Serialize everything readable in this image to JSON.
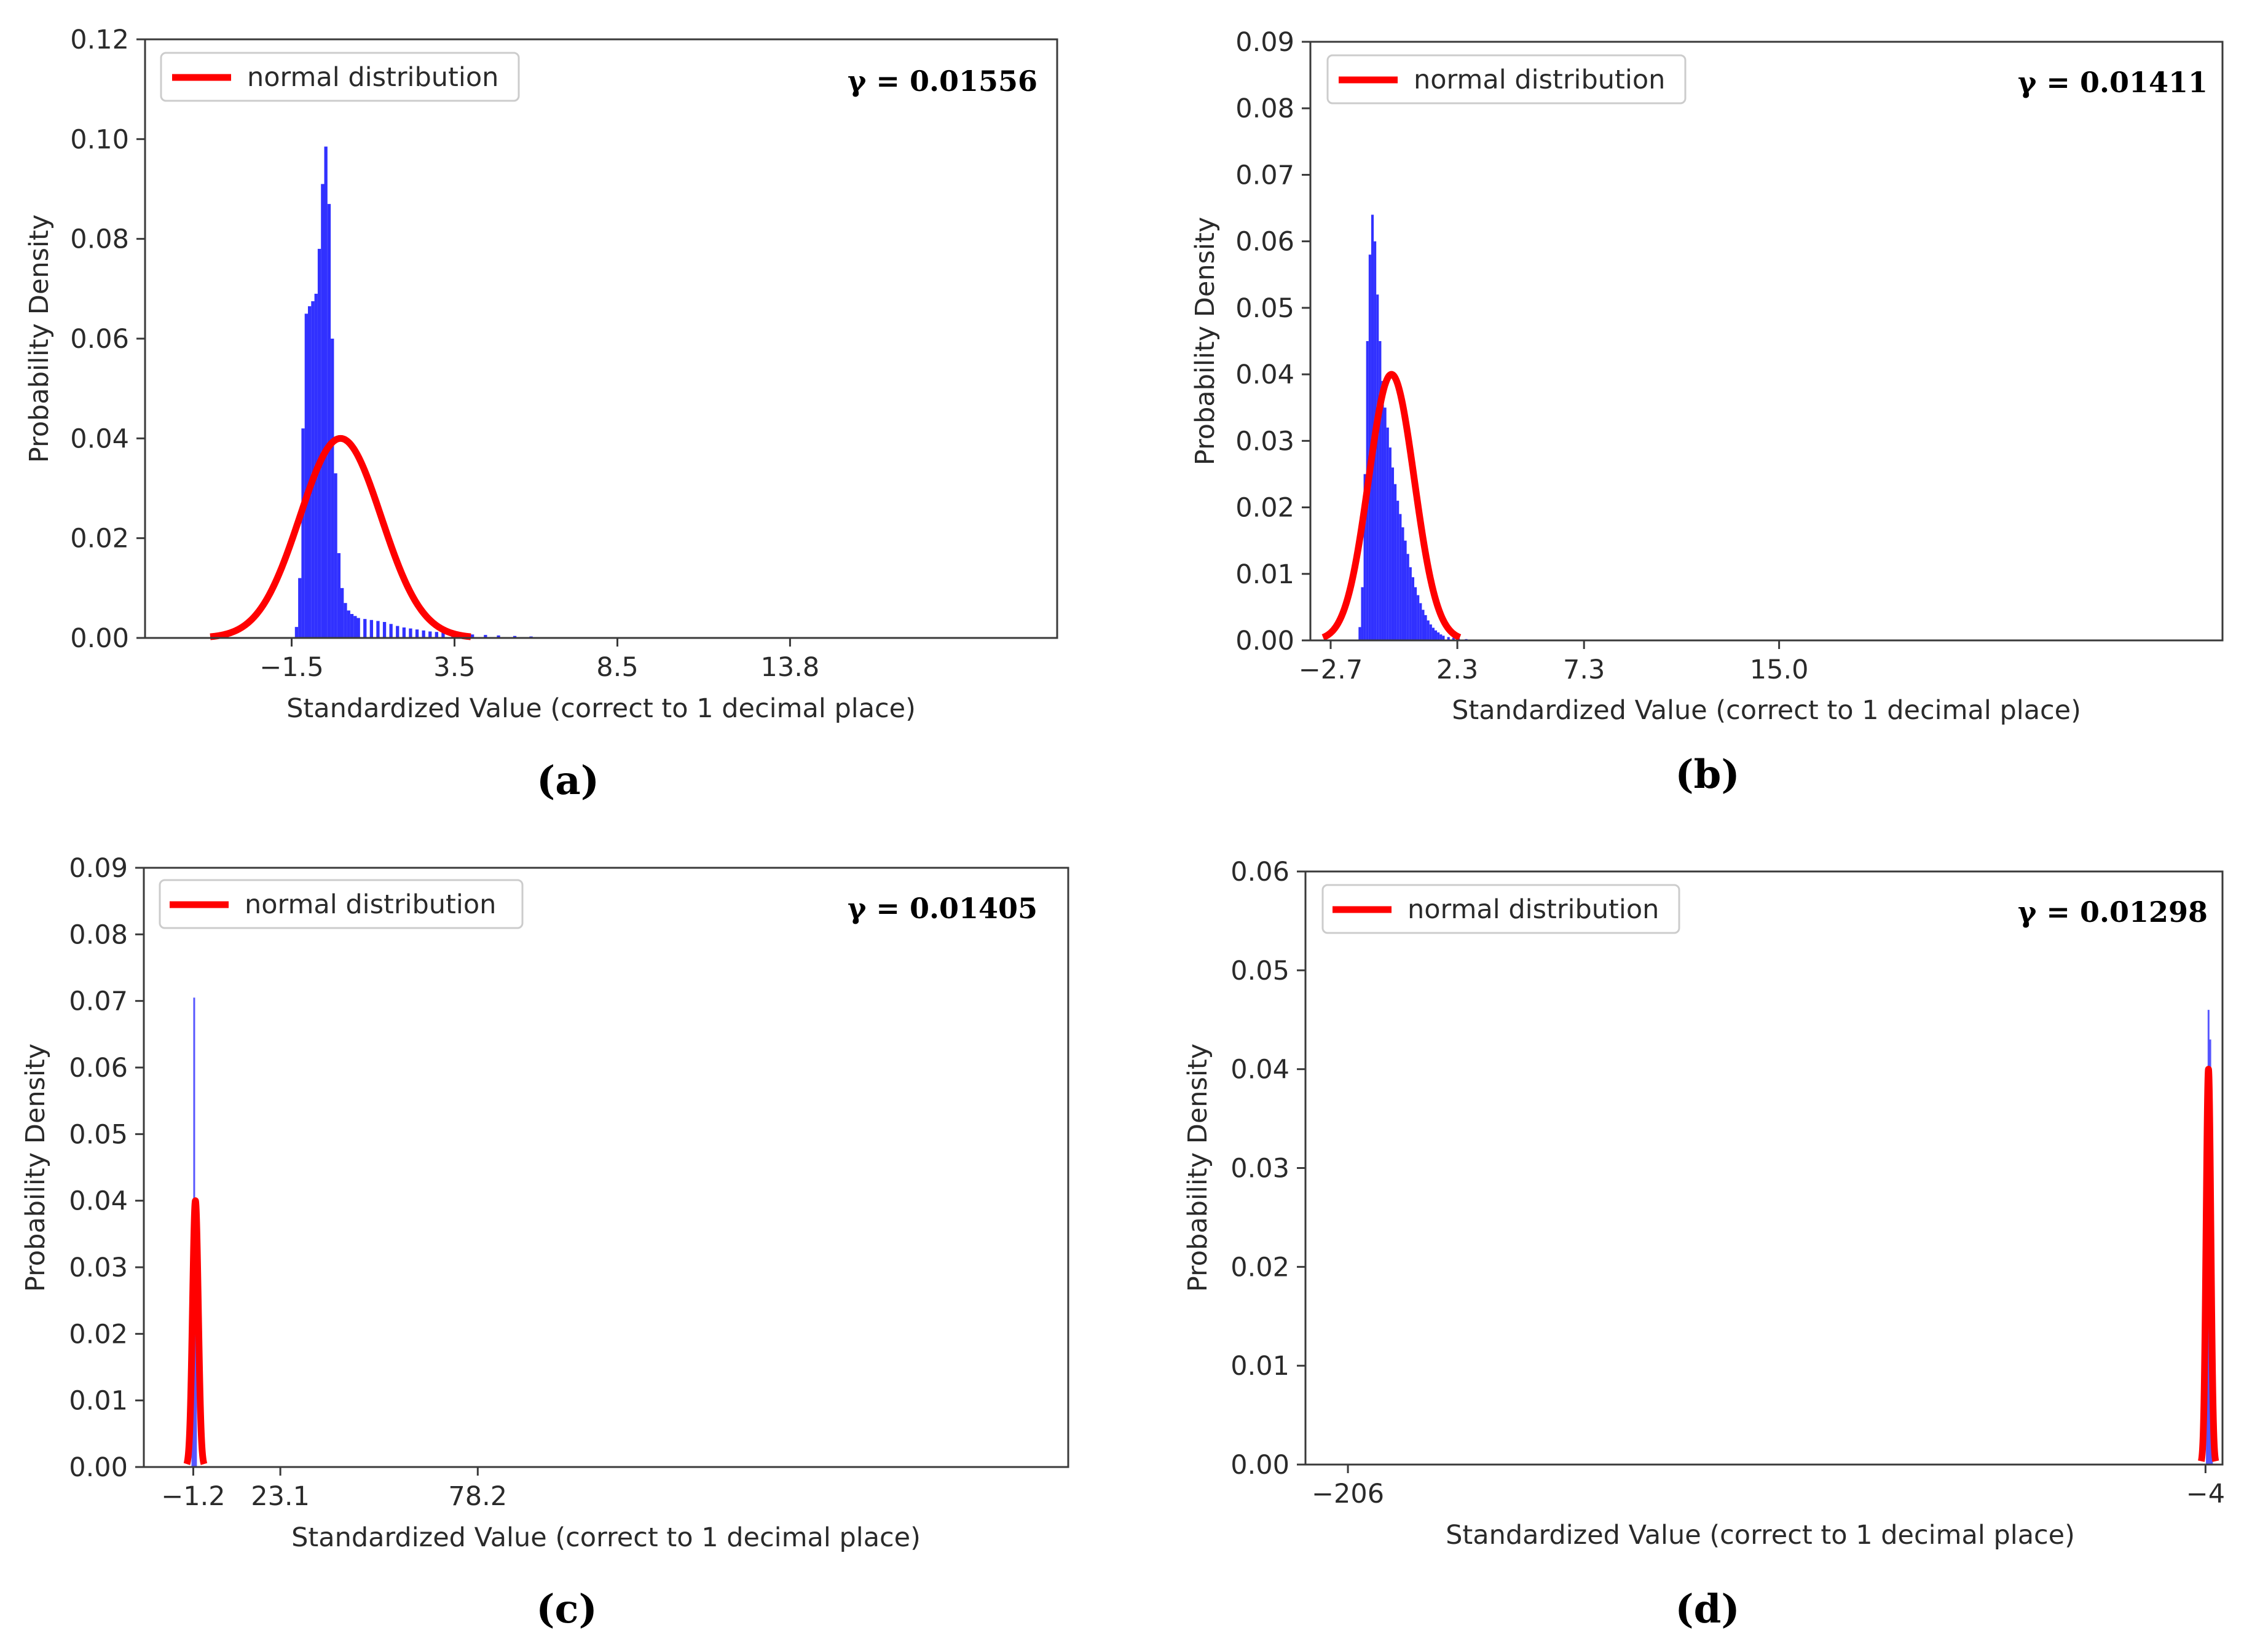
{
  "figure": {
    "panel_count": 4
  },
  "colors": {
    "histogram": "#1f1fff",
    "normal_curve": "#ff0000",
    "axes": "#3a3a3a",
    "legend_border": "#cccccc"
  },
  "chart_data": [
    {
      "type": "bar",
      "panel_label": "(a)",
      "gamma": "γ = 0.01556",
      "xlabel": "Standardized Value (correct to 1 decimal place)",
      "ylabel": "Probability Density",
      "xlim": [
        -6.0,
        22.0
      ],
      "ylim": [
        0,
        0.12
      ],
      "yticks": [
        0,
        0.02,
        0.04,
        0.06,
        0.08,
        0.1,
        0.12
      ],
      "ytick_labels": [
        "0.00",
        "0.02",
        "0.04",
        "0.06",
        "0.08",
        "0.10",
        "0.12"
      ],
      "xticks": [
        -1.5,
        3.5,
        8.5,
        13.8
      ],
      "xtick_labels": [
        "−1.5",
        "3.5",
        "8.5",
        "13.8"
      ],
      "legend": {
        "label": "normal distribution",
        "position": "top-left"
      },
      "histogram": {
        "bin_width": 0.1,
        "values": [
          [
            -1.4,
            0.0022
          ],
          [
            -1.3,
            0.012
          ],
          [
            -1.2,
            0.042
          ],
          [
            -1.1,
            0.065
          ],
          [
            -1.0,
            0.0665
          ],
          [
            -0.9,
            0.0675
          ],
          [
            -0.8,
            0.069
          ],
          [
            -0.7,
            0.078
          ],
          [
            -0.6,
            0.091
          ],
          [
            -0.5,
            0.0985
          ],
          [
            -0.4,
            0.087
          ],
          [
            -0.3,
            0.06
          ],
          [
            -0.2,
            0.033
          ],
          [
            -0.1,
            0.017
          ],
          [
            0.0,
            0.01
          ],
          [
            0.1,
            0.007
          ],
          [
            0.2,
            0.0055
          ],
          [
            0.3,
            0.0048
          ],
          [
            0.4,
            0.0044
          ],
          [
            0.5,
            0.004
          ],
          [
            0.7,
            0.0038
          ],
          [
            0.9,
            0.0036
          ],
          [
            1.1,
            0.0034
          ],
          [
            1.3,
            0.0032
          ],
          [
            1.5,
            0.0028
          ],
          [
            1.7,
            0.0024
          ],
          [
            1.9,
            0.0021
          ],
          [
            2.1,
            0.0019
          ],
          [
            2.3,
            0.0017
          ],
          [
            2.5,
            0.0015
          ],
          [
            2.7,
            0.0013
          ],
          [
            2.9,
            0.0012
          ],
          [
            3.1,
            0.0011
          ],
          [
            3.4,
            0.001
          ],
          [
            3.7,
            0.0008
          ],
          [
            4.0,
            0.0007
          ],
          [
            4.4,
            0.0006
          ],
          [
            4.8,
            0.0005
          ],
          [
            5.3,
            0.0004
          ],
          [
            5.8,
            0.0003
          ]
        ]
      },
      "normal_curve": {
        "mean": 0.0,
        "peak": 0.04,
        "sigma": 1.25,
        "x_range": [
          -4.0,
          4.0
        ]
      }
    },
    {
      "type": "bar",
      "panel_label": "(b)",
      "gamma": "γ = 0.01411",
      "xlabel": "Standardized Value (correct to 1 decimal place)",
      "ylabel": "Probability Density",
      "xlim": [
        -3.5,
        32.5
      ],
      "ylim": [
        0,
        0.09
      ],
      "yticks": [
        0,
        0.01,
        0.02,
        0.03,
        0.04,
        0.05,
        0.06,
        0.07,
        0.08,
        0.09
      ],
      "ytick_labels": [
        "0.00",
        "0.01",
        "0.02",
        "0.03",
        "0.04",
        "0.05",
        "0.06",
        "0.07",
        "0.08",
        "0.09"
      ],
      "xticks": [
        -2.7,
        2.3,
        7.3,
        15.0
      ],
      "xtick_labels": [
        "−2.7",
        "2.3",
        "7.3",
        "15.0"
      ],
      "legend": {
        "label": "normal distribution",
        "position": "top-left"
      },
      "histogram": {
        "bin_width": 0.1,
        "values": [
          [
            -1.6,
            0.002
          ],
          [
            -1.5,
            0.008
          ],
          [
            -1.4,
            0.025
          ],
          [
            -1.3,
            0.045
          ],
          [
            -1.2,
            0.058
          ],
          [
            -1.1,
            0.064
          ],
          [
            -1.0,
            0.06
          ],
          [
            -0.9,
            0.052
          ],
          [
            -0.8,
            0.045
          ],
          [
            -0.7,
            0.039
          ],
          [
            -0.6,
            0.035
          ],
          [
            -0.5,
            0.032
          ],
          [
            -0.4,
            0.029
          ],
          [
            -0.3,
            0.026
          ],
          [
            -0.2,
            0.0235
          ],
          [
            -0.1,
            0.021
          ],
          [
            0.0,
            0.019
          ],
          [
            0.1,
            0.017
          ],
          [
            0.2,
            0.015
          ],
          [
            0.3,
            0.013
          ],
          [
            0.4,
            0.011
          ],
          [
            0.5,
            0.0095
          ],
          [
            0.6,
            0.008
          ],
          [
            0.7,
            0.0068
          ],
          [
            0.8,
            0.0056
          ],
          [
            0.9,
            0.0046
          ],
          [
            1.0,
            0.0038
          ],
          [
            1.1,
            0.003
          ],
          [
            1.2,
            0.0024
          ],
          [
            1.3,
            0.0019
          ],
          [
            1.4,
            0.0015
          ],
          [
            1.5,
            0.0012
          ],
          [
            1.6,
            0.0009
          ],
          [
            1.7,
            0.0007
          ],
          [
            1.9,
            0.0005
          ],
          [
            2.1,
            0.0004
          ],
          [
            2.3,
            0.0003
          ],
          [
            2.6,
            0.0002
          ],
          [
            2.9,
            0.0001
          ]
        ]
      },
      "normal_curve": {
        "mean": -0.3,
        "peak": 0.04,
        "sigma": 0.9,
        "x_range": [
          -3.0,
          2.4
        ]
      }
    },
    {
      "type": "bar",
      "panel_label": "(c)",
      "gamma": "γ = 0.01405",
      "xlabel": "Standardized Value (correct to 1 decimal place)",
      "ylabel": "Probability Density",
      "xlim": [
        -15.0,
        243.0
      ],
      "ylim": [
        0,
        0.09
      ],
      "yticks": [
        0,
        0.01,
        0.02,
        0.03,
        0.04,
        0.05,
        0.06,
        0.07,
        0.08,
        0.09
      ],
      "ytick_labels": [
        "0.00",
        "0.01",
        "0.02",
        "0.03",
        "0.04",
        "0.05",
        "0.06",
        "0.07",
        "0.08",
        "0.09"
      ],
      "xticks": [
        -1.2,
        23.1,
        78.2
      ],
      "xtick_labels": [
        "−1.2",
        "23.1",
        "78.2"
      ],
      "legend": {
        "label": "normal distribution",
        "position": "top-left"
      },
      "histogram": {
        "bin_width": 0.5,
        "values": [
          [
            -1.7,
            0.03
          ],
          [
            -1.2,
            0.0705
          ],
          [
            -0.7,
            0.035
          ]
        ]
      },
      "normal_curve": {
        "mean": -0.6,
        "peak": 0.04,
        "sigma": 0.8,
        "x_range": [
          -3.0,
          1.8
        ]
      }
    },
    {
      "type": "bar",
      "panel_label": "(d)",
      "gamma": "γ = 0.01298",
      "xlabel": "Standardized Value (correct to 1 decimal place)",
      "ylabel": "Probability Density",
      "xlim": [
        -216,
        0
      ],
      "ylim": [
        0,
        0.06
      ],
      "yticks": [
        0,
        0.01,
        0.02,
        0.03,
        0.04,
        0.05,
        0.06
      ],
      "ytick_labels": [
        "0.00",
        "0.01",
        "0.02",
        "0.03",
        "0.04",
        "0.05",
        "0.06"
      ],
      "xticks": [
        -206,
        -4
      ],
      "xtick_labels": [
        "−206",
        "−4"
      ],
      "legend": {
        "label": "normal distribution",
        "position": "top-left"
      },
      "histogram": {
        "bin_width": 0.4,
        "values": [
          [
            -3.9,
            0.02
          ],
          [
            -3.5,
            0.046
          ],
          [
            -3.1,
            0.043
          ],
          [
            -2.7,
            0.02
          ]
        ]
      },
      "normal_curve": {
        "mean": -3.3,
        "peak": 0.04,
        "sigma": 0.55,
        "x_range": [
          -5.0,
          -1.6
        ]
      }
    }
  ]
}
